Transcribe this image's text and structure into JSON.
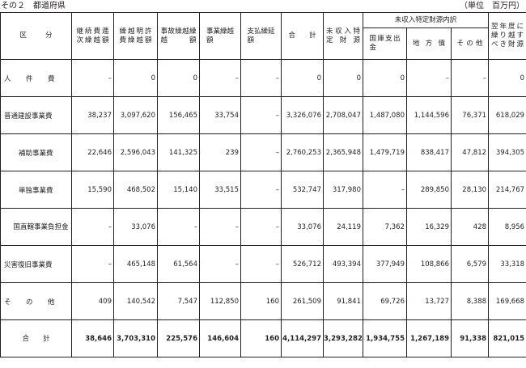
{
  "title": "その２　都道府県",
  "unit": "（単位　百万円）",
  "headers": {
    "category": "区　分",
    "carryover_continued": "継続費逓次繰越額",
    "carryover_explicit": "繰越明許費繰越額",
    "carryover_accident": "事故繰越繰越額",
    "carryover_business": "事業繰越額",
    "carryover_payment": "支払繰延額",
    "total": "合　計",
    "uncollected_source": "未収入特定財源",
    "breakdown_group": "未収入特定財源内訳",
    "national_treasury": "国庫支出金",
    "local_bond": "地方債",
    "other": "その他",
    "next_year": "翌年度に繰り越すべき財源"
  },
  "rows": [
    {
      "label": "人　件　費",
      "values": [
        "–",
        "0",
        "0",
        "–",
        "–",
        "0",
        "0",
        "0",
        "–",
        "–",
        "0"
      ]
    },
    {
      "label": "普通建設事業費",
      "values": [
        "38,237",
        "3,097,620",
        "156,465",
        "33,754",
        "–",
        "3,326,076",
        "2,708,047",
        "1,487,080",
        "1,144,596",
        "76,371",
        "618,029"
      ]
    },
    {
      "label": "補助事業費",
      "values": [
        "22,646",
        "2,596,043",
        "141,325",
        "239",
        "–",
        "2,760,253",
        "2,365,948",
        "1,479,719",
        "838,417",
        "47,812",
        "394,305"
      ]
    },
    {
      "label": "単独事業費",
      "values": [
        "15,590",
        "468,502",
        "15,140",
        "33,515",
        "–",
        "532,747",
        "317,980",
        "–",
        "289,850",
        "28,130",
        "214,767"
      ]
    },
    {
      "label": "国直轄事業負担金",
      "values": [
        "–",
        "33,076",
        "–",
        "–",
        "–",
        "33,076",
        "24,119",
        "7,362",
        "16,329",
        "428",
        "8,956"
      ]
    },
    {
      "label": "災害復旧事業費",
      "values": [
        "–",
        "465,148",
        "61,564",
        "–",
        "–",
        "526,712",
        "493,394",
        "377,949",
        "108,866",
        "6,579",
        "33,318"
      ]
    },
    {
      "label": "そ　の　他",
      "values": [
        "409",
        "140,542",
        "7,547",
        "112,850",
        "160",
        "261,509",
        "91,841",
        "69,726",
        "13,727",
        "8,388",
        "169,668"
      ]
    },
    {
      "label": "合　　計",
      "values": [
        "38,646",
        "3,703,310",
        "225,576",
        "146,604",
        "160",
        "4,114,297",
        "3,293,282",
        "1,934,755",
        "1,267,189",
        "91,338",
        "821,015"
      ]
    }
  ]
}
